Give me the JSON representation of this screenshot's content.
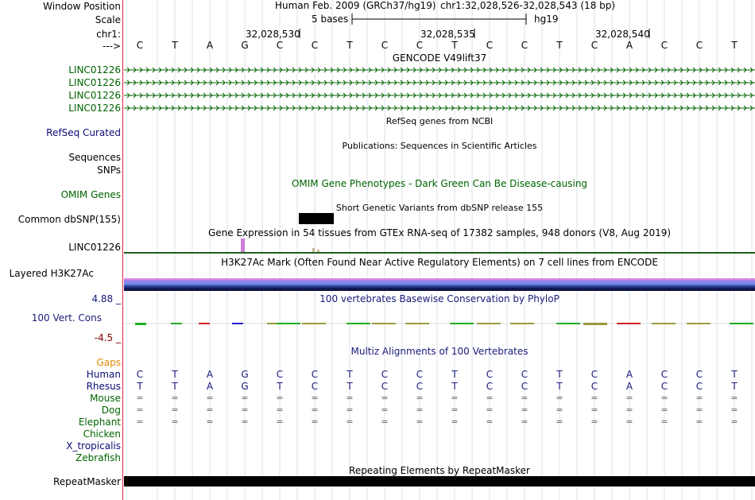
{
  "colors": {
    "gencode": "#006400",
    "refseq": "#0c0c78",
    "omim": "#006400",
    "gtex_bar": "#cc7fd9",
    "blue_label": "#1a1a7a",
    "red_label": "#800000",
    "gaps": "#e08a00",
    "chicken": "#006400"
  },
  "header": {
    "window_position_label": "Window Position",
    "scale_label": "Scale",
    "chr_label": "chr1:",
    "arrow_label": "--->",
    "assembly": "Human Feb. 2009 (GRCh37/hg19)",
    "position": "chr1:32,028,526-32,028,543 (18 bp)",
    "scale_text": "5 bases",
    "scale_db": "hg19",
    "ticks": [
      "32,028,530",
      "32,028,535",
      "32,028,540"
    ]
  },
  "sequence": [
    "C",
    "T",
    "A",
    "G",
    "C",
    "C",
    "T",
    "C",
    "C",
    "T",
    "C",
    "C",
    "T",
    "C",
    "A",
    "C",
    "C",
    "T"
  ],
  "tracks": {
    "gencode": {
      "title": "GENCODE V49lift37",
      "rows": [
        "LINC01226",
        "LINC01226",
        "LINC01226",
        "LINC01226"
      ]
    },
    "refseq": {
      "label": "RefSeq Curated",
      "title": "RefSeq genes from NCBI"
    },
    "publications": {
      "label_sequences": "Sequences",
      "title": "Publications: Sequences in Scientific Articles"
    },
    "snps": {
      "label": "SNPs"
    },
    "omim": {
      "label": "OMIM Genes",
      "title": "OMIM Gene Phenotypes - Dark Green Can Be Disease-causing"
    },
    "dbsnp": {
      "label": "Common dbSNP(155)",
      "title": "Short Genetic Variants from dbSNP release 155"
    },
    "gtex": {
      "label": "LINC01226",
      "title": "Gene Expression in 54 tissues from GTEx RNA-seq of 17382 samples, 948 donors (V8, Aug 2019)"
    },
    "h3k27ac": {
      "label": "Layered H3K27Ac",
      "title": "H3K27Ac Mark (Often Found Near Active Regulatory Elements) on 7 cell lines from ENCODE"
    },
    "phylop": {
      "label": "100 Vert. Cons",
      "max": "4.88 _",
      "min": "-4.5 _",
      "title": "100 vertebrates Basewise Conservation by PhyloP"
    },
    "multiz": {
      "title": "Multiz Alignments of 100 Vertebrates",
      "gaps_label": "Gaps",
      "species": [
        {
          "name": "Human",
          "seq": [
            "C",
            "T",
            "A",
            "G",
            "C",
            "C",
            "T",
            "C",
            "C",
            "T",
            "C",
            "C",
            "T",
            "C",
            "A",
            "C",
            "C",
            "T"
          ]
        },
        {
          "name": "Rhesus",
          "seq": [
            "T",
            "T",
            "A",
            "G",
            "T",
            "C",
            "T",
            "C",
            "C",
            "T",
            "C",
            "C",
            "T",
            "C",
            "A",
            "C",
            "C",
            "T"
          ]
        },
        {
          "name": "Mouse",
          "seq": [
            "=",
            "=",
            "=",
            "=",
            "=",
            "=",
            "=",
            "=",
            "=",
            "=",
            "=",
            "=",
            "=",
            "=",
            "=",
            "=",
            "=",
            "="
          ]
        },
        {
          "name": "Dog",
          "seq": [
            "=",
            "=",
            "=",
            "=",
            "=",
            "=",
            "=",
            "=",
            "=",
            "=",
            "=",
            "=",
            "=",
            "=",
            "=",
            "=",
            "=",
            "="
          ]
        },
        {
          "name": "Elephant",
          "seq": [
            "=",
            "=",
            "=",
            "=",
            "=",
            "=",
            "=",
            "=",
            "=",
            "=",
            "=",
            "=",
            "=",
            "=",
            "=",
            "=",
            "=",
            "="
          ]
        },
        {
          "name": "Chicken",
          "seq": []
        },
        {
          "name": "X_tropicalis",
          "seq": []
        },
        {
          "name": "Zebrafish",
          "seq": []
        }
      ]
    },
    "repeatmasker": {
      "label": "RepeatMasker",
      "title": "Repeating Elements by RepeatMasker"
    }
  }
}
